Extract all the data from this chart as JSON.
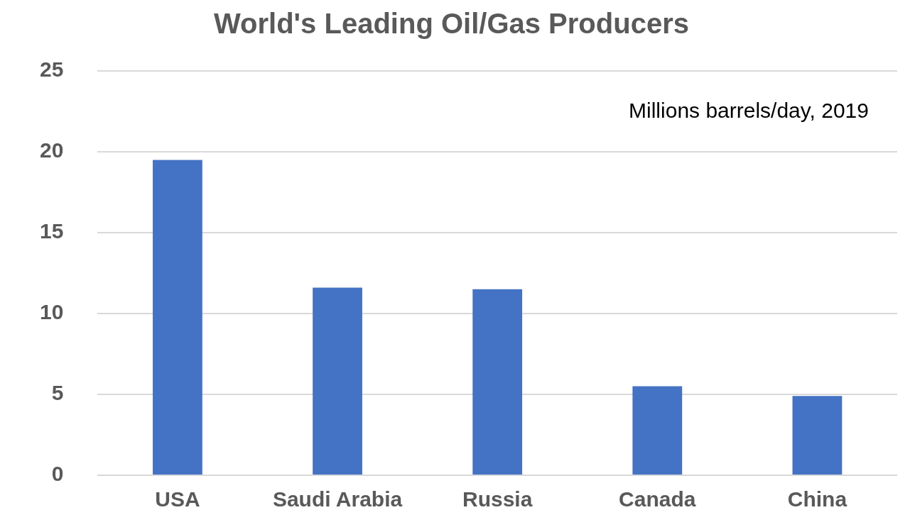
{
  "chart_data": {
    "type": "bar",
    "title": "World's Leading Oil/Gas Producers",
    "categories": [
      "USA",
      "Saudi Arabia",
      "Russia",
      "Canada",
      "China"
    ],
    "values": [
      19.5,
      11.6,
      11.5,
      5.5,
      4.9
    ],
    "color": "#4472c4",
    "ylim": [
      0,
      25
    ],
    "yticks": [
      0,
      5,
      10,
      15,
      20,
      25
    ],
    "grid": "y",
    "annotations": [
      "Millions barrels/day, 2019"
    ]
  }
}
